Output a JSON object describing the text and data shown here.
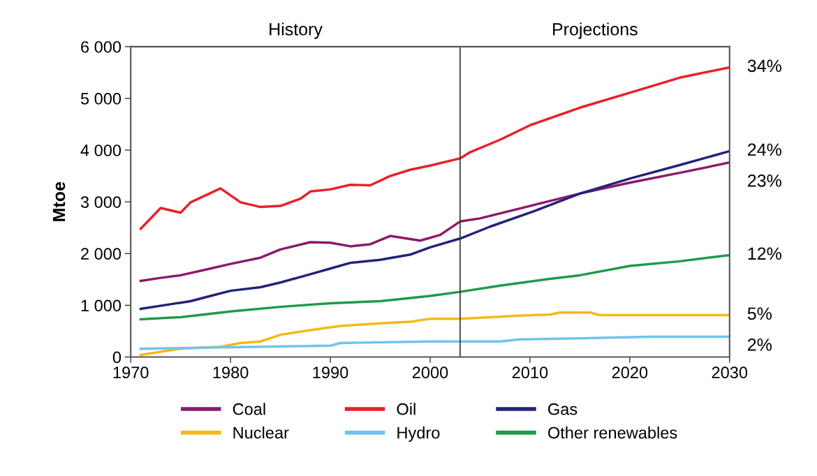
{
  "chart_data": {
    "type": "line",
    "ylabel": "Mtoe",
    "xlim": [
      1970,
      2030
    ],
    "ylim": [
      0,
      6000
    ],
    "xticks": [
      1970,
      1980,
      1990,
      2000,
      2010,
      2020,
      2030
    ],
    "yticks": [
      {
        "value": 0,
        "label": "0"
      },
      {
        "value": 1000,
        "label": "1 000"
      },
      {
        "value": 2000,
        "label": "2 000"
      },
      {
        "value": 3000,
        "label": "3 000"
      },
      {
        "value": 4000,
        "label": "4 000"
      },
      {
        "value": 5000,
        "label": "5 000"
      },
      {
        "value": 6000,
        "label": "6 000"
      }
    ],
    "grid": false,
    "legend": "bottom",
    "marker": "none",
    "line_style": "solid",
    "ref_lines": [
      {
        "axis": "x",
        "value": 2003,
        "color": "#333333"
      }
    ],
    "annotations": [
      "History",
      "Projections",
      "34%",
      "24%",
      "23%",
      "12%",
      "5%",
      "2%"
    ],
    "series": [
      {
        "name": "Coal",
        "color": "#8b1a6b",
        "x": [
          1971,
          1973,
          1975,
          1978,
          1980,
          1983,
          1985,
          1988,
          1990,
          1992,
          1994,
          1996,
          1999,
          2001,
          2003,
          2005,
          2010,
          2015,
          2020,
          2025,
          2030
        ],
        "values": [
          1470,
          1530,
          1580,
          1710,
          1800,
          1920,
          2080,
          2220,
          2210,
          2140,
          2180,
          2340,
          2250,
          2360,
          2620,
          2680,
          2920,
          3160,
          3370,
          3560,
          3760
        ]
      },
      {
        "name": "Oil",
        "color": "#e8202a",
        "x": [
          1971,
          1973,
          1975,
          1976,
          1979,
          1981,
          1983,
          1985,
          1987,
          1988,
          1990,
          1992,
          1994,
          1996,
          1998,
          2000,
          2003,
          2004,
          2007,
          2010,
          2015,
          2020,
          2025,
          2030
        ],
        "values": [
          2480,
          2880,
          2790,
          2990,
          3260,
          2990,
          2900,
          2920,
          3060,
          3200,
          3240,
          3330,
          3320,
          3500,
          3620,
          3700,
          3840,
          3960,
          4200,
          4480,
          4820,
          5110,
          5400,
          5600
        ]
      },
      {
        "name": "Gas",
        "color": "#22237a",
        "x": [
          1971,
          1974,
          1976,
          1978,
          1980,
          1983,
          1985,
          1988,
          1990,
          1992,
          1995,
          1998,
          2000,
          2003,
          2006,
          2010,
          2015,
          2020,
          2025,
          2030
        ],
        "values": [
          930,
          1020,
          1080,
          1180,
          1280,
          1350,
          1440,
          1600,
          1710,
          1820,
          1880,
          1980,
          2120,
          2290,
          2520,
          2790,
          3160,
          3450,
          3710,
          3980
        ]
      },
      {
        "name": "Nuclear",
        "color": "#f5b915",
        "x": [
          1971,
          1975,
          1979,
          1981,
          1983,
          1985,
          1988,
          1991,
          1995,
          1998,
          2000,
          2003,
          2006,
          2009,
          2012,
          2013,
          2016,
          2017,
          2030
        ],
        "values": [
          40,
          160,
          200,
          270,
          300,
          430,
          520,
          600,
          650,
          680,
          740,
          740,
          770,
          800,
          820,
          860,
          860,
          810,
          810
        ]
      },
      {
        "name": "Hydro",
        "color": "#6ec4ef",
        "x": [
          1971,
          1980,
          1990,
          1991,
          2000,
          2007,
          2009,
          2015,
          2022,
          2030
        ],
        "values": [
          160,
          190,
          220,
          270,
          300,
          300,
          340,
          360,
          390,
          390
        ]
      },
      {
        "name": "Other renewables",
        "color": "#1f9a4a",
        "x": [
          1971,
          1975,
          1980,
          1985,
          1990,
          1995,
          2000,
          2003,
          2007,
          2012,
          2015,
          2020,
          2025,
          2030
        ],
        "values": [
          730,
          770,
          880,
          970,
          1040,
          1080,
          1180,
          1260,
          1380,
          1510,
          1580,
          1760,
          1850,
          1970
        ]
      }
    ]
  }
}
